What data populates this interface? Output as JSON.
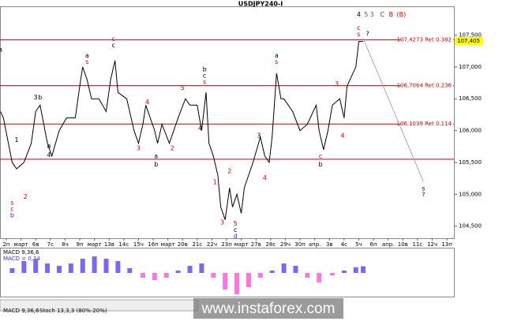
{
  "chart_data": {
    "type": "line",
    "title": "USDJPY240-I",
    "xlim": [
      -0.43,
      30.48
    ],
    "xticks": [
      {
        "value": 0,
        "label": "2п"
      },
      {
        "value": 1,
        "label": "март"
      },
      {
        "value": 2,
        "label": "6в"
      },
      {
        "value": 3,
        "label": "7c"
      },
      {
        "value": 4,
        "label": "8ч"
      },
      {
        "value": 5,
        "label": "9п"
      },
      {
        "value": 6,
        "label": "март"
      },
      {
        "value": 7,
        "label": "13в"
      },
      {
        "value": 8,
        "label": "14c"
      },
      {
        "value": 9,
        "label": "15ч"
      },
      {
        "value": 10,
        "label": "16п"
      },
      {
        "value": 11,
        "label": "март"
      },
      {
        "value": 12,
        "label": "20в"
      },
      {
        "value": 13,
        "label": "21c"
      },
      {
        "value": 14,
        "label": "22ч"
      },
      {
        "value": 15,
        "label": "23п"
      },
      {
        "value": 16,
        "label": "март"
      },
      {
        "value": 17,
        "label": "27в"
      },
      {
        "value": 18,
        "label": "28c"
      },
      {
        "value": 19,
        "label": "29ч"
      },
      {
        "value": 20,
        "label": "30п"
      },
      {
        "value": 21,
        "label": "апр."
      },
      {
        "value": 22,
        "label": "3в"
      },
      {
        "value": 23,
        "label": "4c"
      },
      {
        "value": 24,
        "label": "5ч"
      },
      {
        "value": 25,
        "label": "6п"
      },
      {
        "value": 26,
        "label": "апр."
      },
      {
        "value": 27,
        "label": "10в"
      },
      {
        "value": 28,
        "label": "11c"
      },
      {
        "value": 29,
        "label": "12ч"
      },
      {
        "value": 30,
        "label": "13п"
      }
    ],
    "ylim": [
      104.31,
      107.94
    ],
    "yticks": [
      {
        "value": 104.5,
        "label": "104,500"
      },
      {
        "value": 105,
        "label": "105,000"
      },
      {
        "value": 105.5,
        "label": "105,500"
      },
      {
        "value": 106,
        "label": "106,000"
      },
      {
        "value": 106.5,
        "label": "106,500"
      },
      {
        "value": 107,
        "label": "107,000"
      },
      {
        "value": 107.5,
        "label": "107,500"
      }
    ],
    "current_price": {
      "value": 107.405,
      "label": "107,405",
      "color": "#ffff00"
    },
    "price": {
      "color": "#000000",
      "x": [
        -0.4,
        -0.2,
        0.4,
        0.7,
        1.2,
        1.7,
        2.0,
        2.3,
        2.8,
        3.1,
        3.6,
        4.1,
        4.7,
        5.0,
        5.2,
        5.5,
        5.8,
        6.3,
        6.8,
        7.1,
        7.4,
        7.6,
        8.2,
        8.7,
        9.0,
        9.3,
        9.5,
        10.1,
        10.3,
        10.6,
        11.1,
        11.7,
        12.2,
        12.5,
        13.0,
        13.3,
        13.6,
        13.8,
        14.1,
        14.4,
        14.6,
        14.9,
        15.2,
        15.4,
        15.7,
        16.0,
        16.2,
        16.8,
        17.3,
        17.6,
        17.9,
        18.1,
        18.4,
        18.7,
        18.9,
        19.5,
        20.0,
        20.5,
        21.1,
        21.3,
        21.6,
        21.9,
        22.2,
        22.7,
        23.0,
        23.2,
        23.8,
        24.0,
        24.3
      ],
      "values": [
        106.3,
        106.2,
        105.5,
        105.4,
        105.5,
        105.8,
        106.3,
        106.4,
        105.8,
        105.6,
        106.0,
        106.2,
        106.2,
        106.7,
        107.0,
        106.8,
        106.5,
        106.5,
        106.3,
        106.8,
        107.1,
        106.6,
        106.5,
        106.0,
        105.8,
        106.1,
        106.4,
        106.0,
        105.8,
        106.1,
        105.8,
        106.2,
        106.5,
        106.4,
        106.4,
        106.0,
        106.6,
        105.8,
        105.6,
        105.3,
        104.8,
        104.6,
        105.1,
        104.8,
        105.0,
        104.7,
        105.1,
        105.5,
        105.9,
        105.6,
        105.5,
        105.9,
        106.9,
        106.5,
        106.5,
        106.3,
        106.0,
        106.1,
        106.4,
        106.0,
        105.7,
        106.0,
        106.4,
        106.5,
        106.2,
        106.7,
        107.0,
        107.4,
        107.4
      ]
    },
    "forecast": {
      "color": "#999999",
      "x": [
        24.3,
        28.4
      ],
      "values": [
        107.45,
        105.2
      ]
    },
    "levels": [
      {
        "value": 107.4273,
        "label": "107,4273 Ret 0.382",
        "color": "#cc0000"
      },
      {
        "value": 106.7064,
        "label": "106,7064 Ret 0.236",
        "color": "#cc0000"
      },
      {
        "value": 106.1039,
        "label": "106,1039 Ret 0.114",
        "color": "#cc0000"
      },
      {
        "value": 105.55,
        "color": "#cc0000"
      }
    ],
    "annotations": [
      {
        "text": "a",
        "x": -0.4,
        "y": 107.27,
        "color": "#000000"
      },
      {
        "text": "1",
        "x": 0.7,
        "y": 105.85,
        "color": "#000000"
      },
      {
        "text": "2",
        "x": 1.3,
        "y": 104.96,
        "color": "#cc0000"
      },
      {
        "text": "s",
        "x": 0.4,
        "y": 104.87,
        "color": "#cc0000"
      },
      {
        "text": "c",
        "x": 0.4,
        "y": 104.77,
        "color": "#cc0000"
      },
      {
        "text": "b",
        "x": 0.4,
        "y": 104.67,
        "color": "#3333cc"
      },
      {
        "text": "3",
        "x": 2.0,
        "y": 106.52,
        "color": "#000000"
      },
      {
        "text": "b",
        "x": 2.3,
        "y": 106.52,
        "color": "#000000"
      },
      {
        "text": "a",
        "x": 2.9,
        "y": 105.76,
        "color": "#000000"
      },
      {
        "text": "4",
        "x": 2.9,
        "y": 105.62,
        "color": "#000000"
      },
      {
        "text": "a",
        "x": 5.5,
        "y": 107.18,
        "color": "#000000"
      },
      {
        "text": "s",
        "x": 5.5,
        "y": 107.08,
        "color": "#cc0000"
      },
      {
        "text": "c",
        "x": 7.3,
        "y": 107.44,
        "color": "#3333cc"
      },
      {
        "text": "c",
        "x": 7.3,
        "y": 107.34,
        "color": "#000000"
      },
      {
        "text": "4",
        "x": 9.6,
        "y": 106.45,
        "color": "#cc0000"
      },
      {
        "text": "3",
        "x": 9.0,
        "y": 105.72,
        "color": "#cc0000"
      },
      {
        "text": "a",
        "x": 10.2,
        "y": 105.6,
        "color": "#000000"
      },
      {
        "text": "b",
        "x": 10.2,
        "y": 105.47,
        "color": "#000000"
      },
      {
        "text": "2",
        "x": 11.3,
        "y": 105.72,
        "color": "#cc0000"
      },
      {
        "text": "5",
        "x": 12.0,
        "y": 106.67,
        "color": "#cc0000"
      },
      {
        "text": "b",
        "x": 13.5,
        "y": 106.96,
        "color": "#000000"
      },
      {
        "text": "c",
        "x": 13.5,
        "y": 106.86,
        "color": "#000000"
      },
      {
        "text": "s",
        "x": 13.5,
        "y": 106.76,
        "color": "#cc0000"
      },
      {
        "text": "4",
        "x": 13.2,
        "y": 106.04,
        "color": "#000000"
      },
      {
        "text": "1",
        "x": 14.2,
        "y": 105.19,
        "color": "#cc0000"
      },
      {
        "text": "2",
        "x": 15.2,
        "y": 105.36,
        "color": "#cc0000"
      },
      {
        "text": "3",
        "x": 14.7,
        "y": 104.56,
        "color": "#cc0000"
      },
      {
        "text": "5",
        "x": 15.6,
        "y": 104.54,
        "color": "#cc0000"
      },
      {
        "text": "c",
        "x": 15.6,
        "y": 104.44,
        "color": "#000000"
      },
      {
        "text": "d",
        "x": 15.6,
        "y": 104.34,
        "color": "#3333cc"
      },
      {
        "text": "3",
        "x": 17.2,
        "y": 105.92,
        "color": "#000000"
      },
      {
        "text": "4",
        "x": 17.6,
        "y": 105.26,
        "color": "#cc0000"
      },
      {
        "text": "a",
        "x": 18.4,
        "y": 107.18,
        "color": "#000000"
      },
      {
        "text": "s",
        "x": 18.4,
        "y": 107.08,
        "color": "#cc0000"
      },
      {
        "text": "c",
        "x": 21.4,
        "y": 105.6,
        "color": "#cc0000"
      },
      {
        "text": "b",
        "x": 21.4,
        "y": 105.47,
        "color": "#000000"
      },
      {
        "text": "3",
        "x": 22.5,
        "y": 106.73,
        "color": "#cc0000"
      },
      {
        "text": "4",
        "x": 22.9,
        "y": 105.92,
        "color": "#cc0000"
      },
      {
        "text": "4",
        "x": 24.0,
        "y": 107.82,
        "color": "#000000"
      },
      {
        "text": "5",
        "x": 24.5,
        "y": 107.82,
        "color": "#7b3fa0"
      },
      {
        "text": "3",
        "x": 24.9,
        "y": 107.82,
        "color": "#2e8b57"
      },
      {
        "text": "C",
        "x": 25.6,
        "y": 107.82,
        "color": "#3333cc"
      },
      {
        "text": "B",
        "x": 26.2,
        "y": 107.82,
        "color": "#cc0000"
      },
      {
        "text": "(B)",
        "x": 26.9,
        "y": 107.82,
        "color": "#cc0000"
      },
      {
        "text": "c",
        "x": 24.0,
        "y": 107.61,
        "color": "#cc0000"
      },
      {
        "text": "s",
        "x": 24.0,
        "y": 107.51,
        "color": "#cc0000"
      },
      {
        "text": "?",
        "x": 24.6,
        "y": 107.52,
        "color": "#000000"
      },
      {
        "text": "s",
        "x": 28.4,
        "y": 105.09,
        "color": "#000000"
      },
      {
        "text": "?",
        "x": 28.4,
        "y": 104.99,
        "color": "#000000"
      }
    ],
    "macd": {
      "label": "MACD 9,36,6",
      "value_text": "MACD = 0,14",
      "ylim": [
        -0.5,
        0.5
      ],
      "colors": {
        "positive": "#7b68ee",
        "negative": "#ff77dd"
      },
      "x": [
        0.4,
        1.2,
        2.0,
        2.8,
        3.6,
        4.4,
        5.2,
        6.0,
        6.8,
        7.6,
        8.4,
        9.3,
        10.1,
        10.9,
        11.7,
        12.5,
        13.3,
        14.1,
        14.9,
        15.7,
        16.5,
        17.3,
        18.1,
        18.9,
        19.7,
        20.5,
        21.3,
        22.2,
        23.0,
        23.8,
        24.3
      ],
      "values": [
        0.1,
        0.25,
        0.3,
        0.2,
        0.15,
        0.2,
        0.3,
        0.35,
        0.3,
        0.25,
        0.1,
        -0.1,
        -0.15,
        -0.1,
        0.05,
        0.15,
        0.2,
        -0.1,
        -0.35,
        -0.45,
        -0.3,
        -0.1,
        0.05,
        0.2,
        0.15,
        -0.1,
        -0.2,
        -0.05,
        0.05,
        0.12,
        0.14
      ]
    },
    "tabs": [
      "MACD 9,36,6",
      "Stoch 13,3,3 (80%-20%)"
    ],
    "watermark": "www.instaforex.com"
  }
}
